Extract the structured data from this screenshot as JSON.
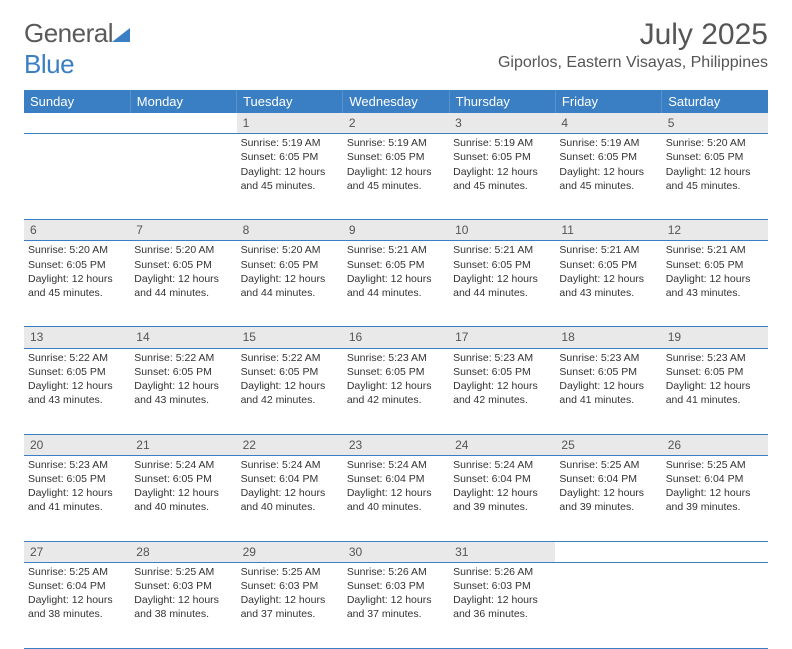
{
  "brand": {
    "part1": "General",
    "part2": "Blue"
  },
  "title": "July 2025",
  "location": "Giporlos, Eastern Visayas, Philippines",
  "colors": {
    "header_bg": "#3a7fc4",
    "daynum_bg": "#e9e9e9",
    "text": "#333333"
  },
  "day_headers": [
    "Sunday",
    "Monday",
    "Tuesday",
    "Wednesday",
    "Thursday",
    "Friday",
    "Saturday"
  ],
  "weeks": [
    [
      {
        "n": "",
        "sr": "",
        "ss": "",
        "dl": ""
      },
      {
        "n": "",
        "sr": "",
        "ss": "",
        "dl": ""
      },
      {
        "n": "1",
        "sr": "Sunrise: 5:19 AM",
        "ss": "Sunset: 6:05 PM",
        "dl": "Daylight: 12 hours and 45 minutes."
      },
      {
        "n": "2",
        "sr": "Sunrise: 5:19 AM",
        "ss": "Sunset: 6:05 PM",
        "dl": "Daylight: 12 hours and 45 minutes."
      },
      {
        "n": "3",
        "sr": "Sunrise: 5:19 AM",
        "ss": "Sunset: 6:05 PM",
        "dl": "Daylight: 12 hours and 45 minutes."
      },
      {
        "n": "4",
        "sr": "Sunrise: 5:19 AM",
        "ss": "Sunset: 6:05 PM",
        "dl": "Daylight: 12 hours and 45 minutes."
      },
      {
        "n": "5",
        "sr": "Sunrise: 5:20 AM",
        "ss": "Sunset: 6:05 PM",
        "dl": "Daylight: 12 hours and 45 minutes."
      }
    ],
    [
      {
        "n": "6",
        "sr": "Sunrise: 5:20 AM",
        "ss": "Sunset: 6:05 PM",
        "dl": "Daylight: 12 hours and 45 minutes."
      },
      {
        "n": "7",
        "sr": "Sunrise: 5:20 AM",
        "ss": "Sunset: 6:05 PM",
        "dl": "Daylight: 12 hours and 44 minutes."
      },
      {
        "n": "8",
        "sr": "Sunrise: 5:20 AM",
        "ss": "Sunset: 6:05 PM",
        "dl": "Daylight: 12 hours and 44 minutes."
      },
      {
        "n": "9",
        "sr": "Sunrise: 5:21 AM",
        "ss": "Sunset: 6:05 PM",
        "dl": "Daylight: 12 hours and 44 minutes."
      },
      {
        "n": "10",
        "sr": "Sunrise: 5:21 AM",
        "ss": "Sunset: 6:05 PM",
        "dl": "Daylight: 12 hours and 44 minutes."
      },
      {
        "n": "11",
        "sr": "Sunrise: 5:21 AM",
        "ss": "Sunset: 6:05 PM",
        "dl": "Daylight: 12 hours and 43 minutes."
      },
      {
        "n": "12",
        "sr": "Sunrise: 5:21 AM",
        "ss": "Sunset: 6:05 PM",
        "dl": "Daylight: 12 hours and 43 minutes."
      }
    ],
    [
      {
        "n": "13",
        "sr": "Sunrise: 5:22 AM",
        "ss": "Sunset: 6:05 PM",
        "dl": "Daylight: 12 hours and 43 minutes."
      },
      {
        "n": "14",
        "sr": "Sunrise: 5:22 AM",
        "ss": "Sunset: 6:05 PM",
        "dl": "Daylight: 12 hours and 43 minutes."
      },
      {
        "n": "15",
        "sr": "Sunrise: 5:22 AM",
        "ss": "Sunset: 6:05 PM",
        "dl": "Daylight: 12 hours and 42 minutes."
      },
      {
        "n": "16",
        "sr": "Sunrise: 5:23 AM",
        "ss": "Sunset: 6:05 PM",
        "dl": "Daylight: 12 hours and 42 minutes."
      },
      {
        "n": "17",
        "sr": "Sunrise: 5:23 AM",
        "ss": "Sunset: 6:05 PM",
        "dl": "Daylight: 12 hours and 42 minutes."
      },
      {
        "n": "18",
        "sr": "Sunrise: 5:23 AM",
        "ss": "Sunset: 6:05 PM",
        "dl": "Daylight: 12 hours and 41 minutes."
      },
      {
        "n": "19",
        "sr": "Sunrise: 5:23 AM",
        "ss": "Sunset: 6:05 PM",
        "dl": "Daylight: 12 hours and 41 minutes."
      }
    ],
    [
      {
        "n": "20",
        "sr": "Sunrise: 5:23 AM",
        "ss": "Sunset: 6:05 PM",
        "dl": "Daylight: 12 hours and 41 minutes."
      },
      {
        "n": "21",
        "sr": "Sunrise: 5:24 AM",
        "ss": "Sunset: 6:05 PM",
        "dl": "Daylight: 12 hours and 40 minutes."
      },
      {
        "n": "22",
        "sr": "Sunrise: 5:24 AM",
        "ss": "Sunset: 6:04 PM",
        "dl": "Daylight: 12 hours and 40 minutes."
      },
      {
        "n": "23",
        "sr": "Sunrise: 5:24 AM",
        "ss": "Sunset: 6:04 PM",
        "dl": "Daylight: 12 hours and 40 minutes."
      },
      {
        "n": "24",
        "sr": "Sunrise: 5:24 AM",
        "ss": "Sunset: 6:04 PM",
        "dl": "Daylight: 12 hours and 39 minutes."
      },
      {
        "n": "25",
        "sr": "Sunrise: 5:25 AM",
        "ss": "Sunset: 6:04 PM",
        "dl": "Daylight: 12 hours and 39 minutes."
      },
      {
        "n": "26",
        "sr": "Sunrise: 5:25 AM",
        "ss": "Sunset: 6:04 PM",
        "dl": "Daylight: 12 hours and 39 minutes."
      }
    ],
    [
      {
        "n": "27",
        "sr": "Sunrise: 5:25 AM",
        "ss": "Sunset: 6:04 PM",
        "dl": "Daylight: 12 hours and 38 minutes."
      },
      {
        "n": "28",
        "sr": "Sunrise: 5:25 AM",
        "ss": "Sunset: 6:03 PM",
        "dl": "Daylight: 12 hours and 38 minutes."
      },
      {
        "n": "29",
        "sr": "Sunrise: 5:25 AM",
        "ss": "Sunset: 6:03 PM",
        "dl": "Daylight: 12 hours and 37 minutes."
      },
      {
        "n": "30",
        "sr": "Sunrise: 5:26 AM",
        "ss": "Sunset: 6:03 PM",
        "dl": "Daylight: 12 hours and 37 minutes."
      },
      {
        "n": "31",
        "sr": "Sunrise: 5:26 AM",
        "ss": "Sunset: 6:03 PM",
        "dl": "Daylight: 12 hours and 36 minutes."
      },
      {
        "n": "",
        "sr": "",
        "ss": "",
        "dl": ""
      },
      {
        "n": "",
        "sr": "",
        "ss": "",
        "dl": ""
      }
    ]
  ]
}
